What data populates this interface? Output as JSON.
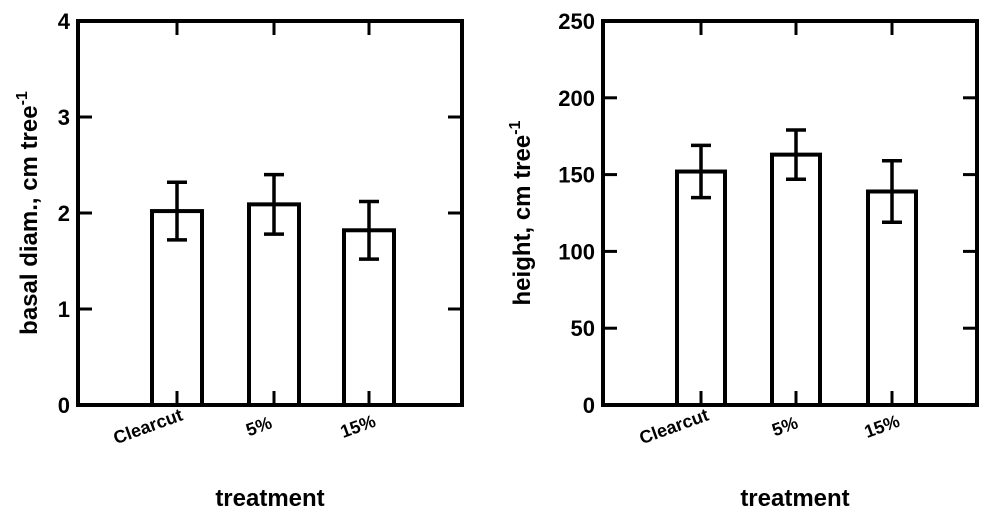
{
  "chart_data": [
    {
      "type": "bar",
      "title": "",
      "xlabel": "treatment",
      "ylabel": "basal diam., cm tree",
      "ylabel_superscript": "-1",
      "categories": [
        "Clearcut",
        "5%",
        "15%"
      ],
      "values": [
        2.02,
        2.09,
        1.82
      ],
      "errors": [
        0.3,
        0.31,
        0.3
      ],
      "ylim": [
        0,
        4
      ],
      "yticks": [
        0,
        1,
        2,
        3,
        4
      ],
      "ytick_labels": [
        "0",
        "1",
        "2",
        "3",
        "4"
      ],
      "grid": false
    },
    {
      "type": "bar",
      "title": "",
      "xlabel": "treatment",
      "ylabel": "height, cm tree",
      "ylabel_superscript": "-1",
      "categories": [
        "Clearcut",
        "5%",
        "15%"
      ],
      "values": [
        152,
        163,
        139
      ],
      "errors": [
        17,
        16,
        20
      ],
      "ylim": [
        0,
        250
      ],
      "yticks": [
        0,
        50,
        100,
        150,
        200,
        250
      ],
      "ytick_labels": [
        "0",
        "50",
        "100",
        "150",
        "200",
        "250"
      ],
      "grid": false
    }
  ]
}
